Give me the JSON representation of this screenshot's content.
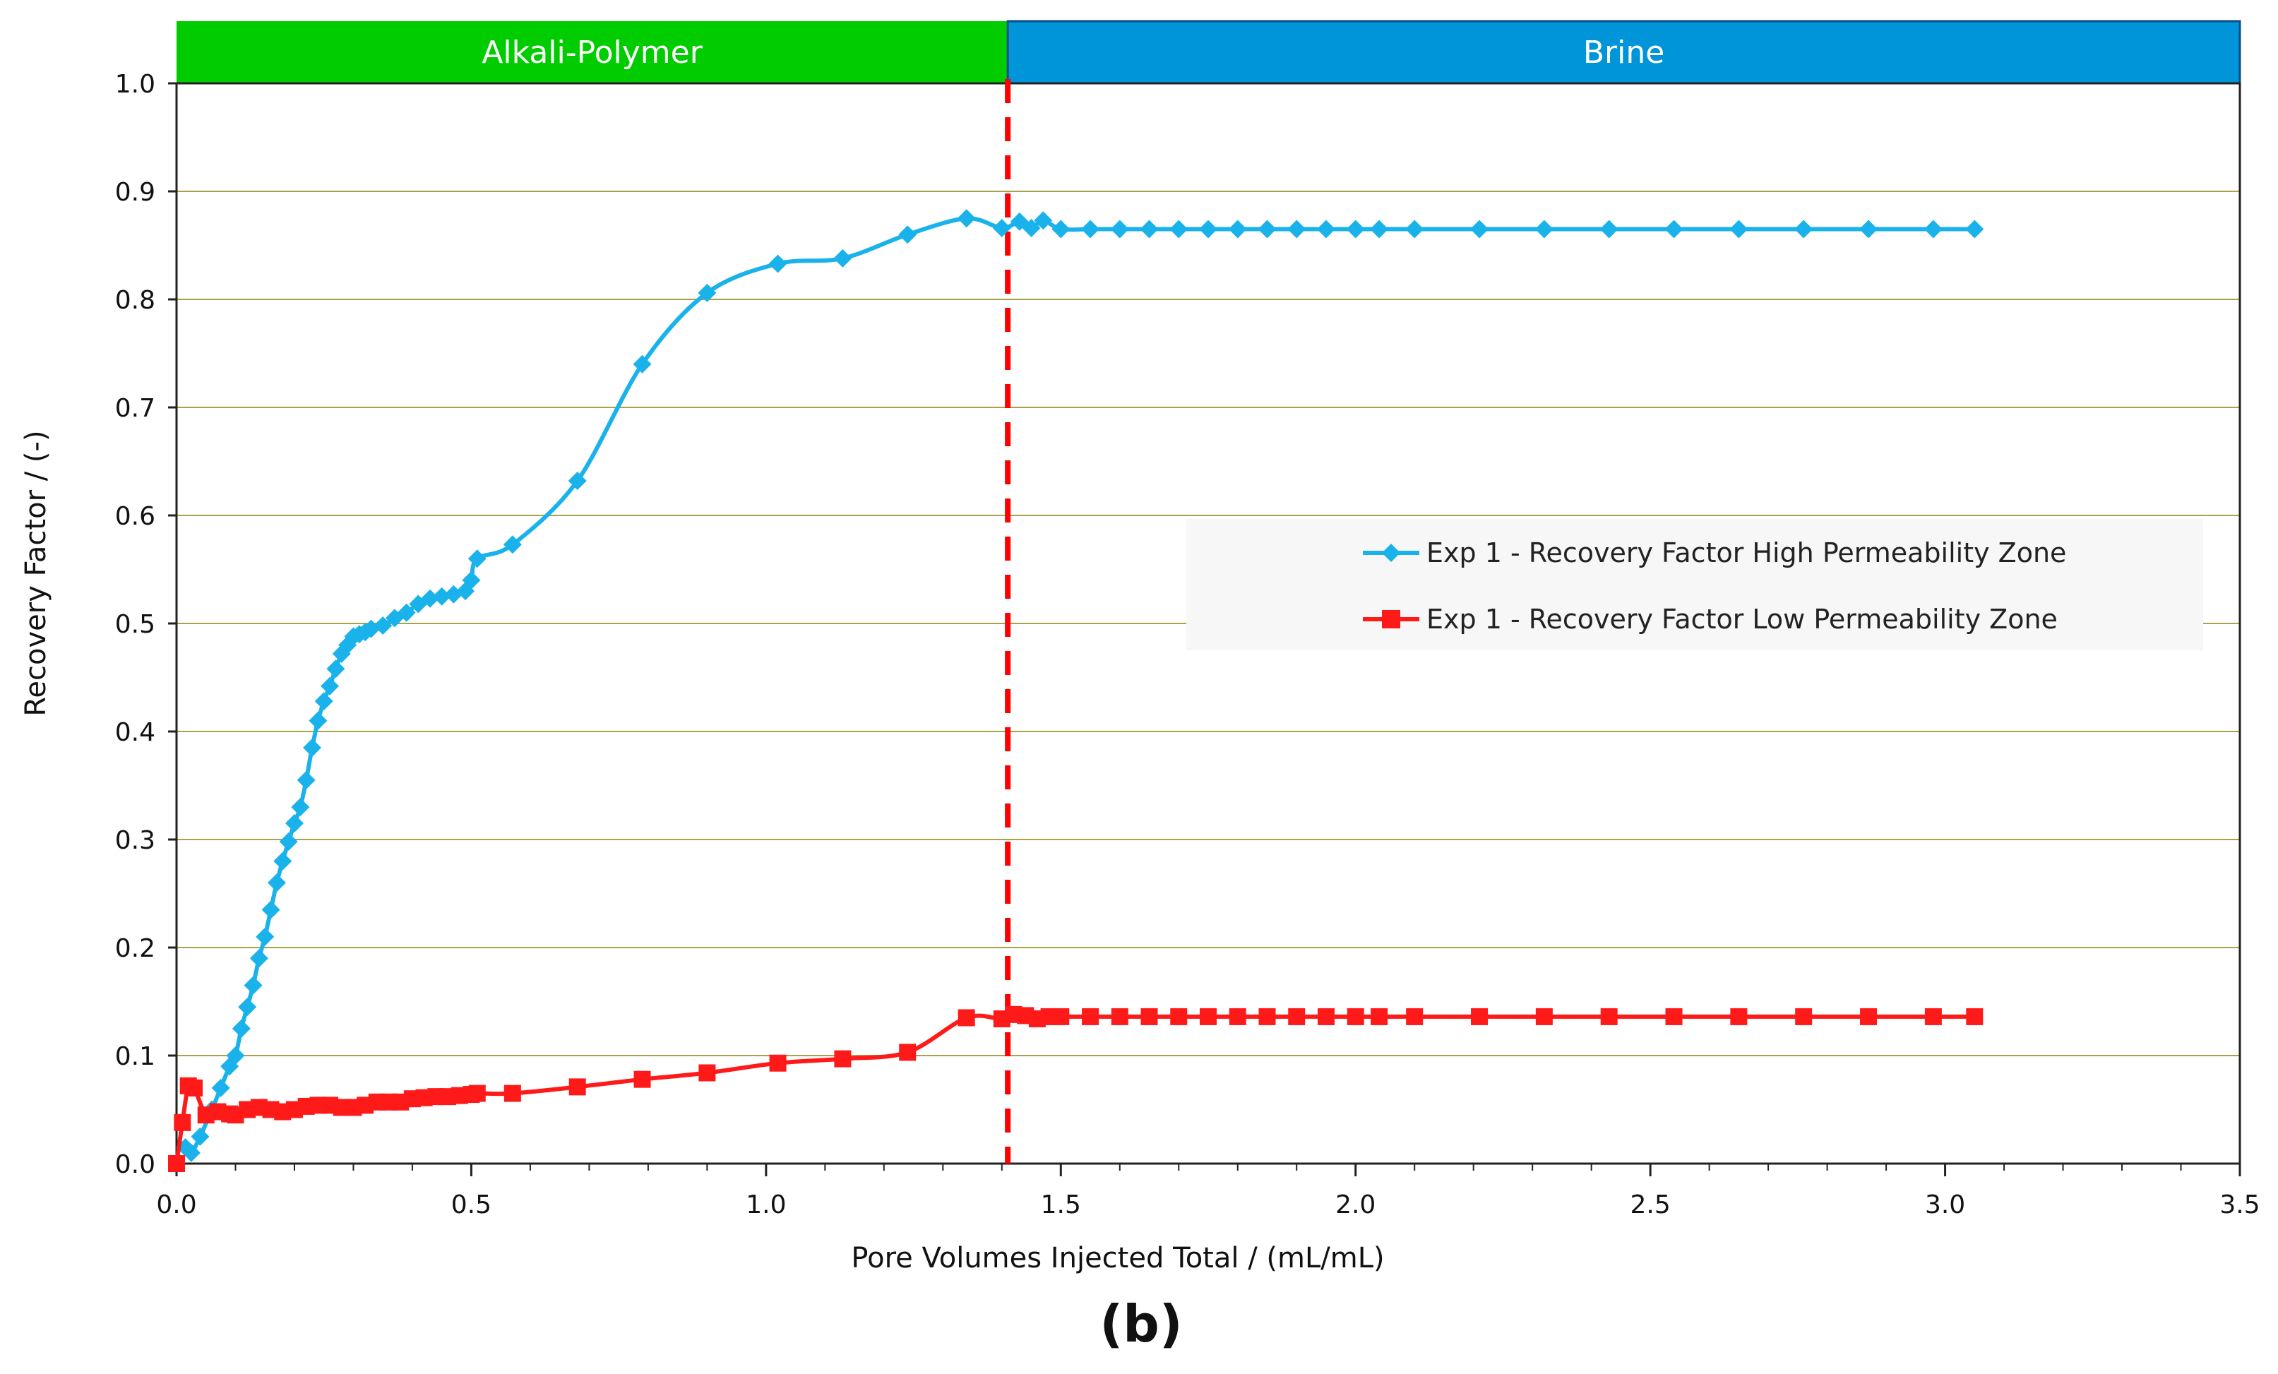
{
  "caption": "(b)",
  "chart_data": {
    "type": "line",
    "title": "",
    "xlabel": "Pore Volumes Injected Total / (mL/mL)",
    "ylabel": "Recovery Factor / (-)",
    "xlim": [
      0.0,
      3.5
    ],
    "ylim": [
      0.0,
      1.0
    ],
    "x_ticks": [
      "0.0",
      "0.5",
      "1.0",
      "1.5",
      "2.0",
      "2.5",
      "3.0",
      "3.5"
    ],
    "y_ticks": [
      "0.0",
      "0.1",
      "0.2",
      "0.3",
      "0.4",
      "0.5",
      "0.6",
      "0.7",
      "0.8",
      "0.9",
      "1.0"
    ],
    "grid": "horizontal",
    "phases": [
      {
        "label": "Alkali-Polymer",
        "x_start": 0.0,
        "x_end": 1.41,
        "color": "#00cc00"
      },
      {
        "label": "Brine",
        "x_start": 1.41,
        "x_end": 3.5,
        "color": "#0095d9"
      }
    ],
    "switch_line_x": 1.41,
    "switch_line_color": "#ff0000",
    "legend_position": "right",
    "series": [
      {
        "name": "Exp 1 - Recovery Factor High Permeability Zone",
        "color": "#1ab2ea",
        "marker": "diamond",
        "x": [
          0.015,
          0.025,
          0.04,
          0.06,
          0.075,
          0.09,
          0.1,
          0.11,
          0.12,
          0.13,
          0.14,
          0.15,
          0.16,
          0.17,
          0.18,
          0.19,
          0.2,
          0.21,
          0.22,
          0.23,
          0.24,
          0.25,
          0.26,
          0.27,
          0.28,
          0.29,
          0.3,
          0.31,
          0.32,
          0.33,
          0.35,
          0.37,
          0.39,
          0.41,
          0.43,
          0.45,
          0.47,
          0.49,
          0.5,
          0.51,
          0.57,
          0.68,
          0.79,
          0.9,
          1.02,
          1.13,
          1.24,
          1.34,
          1.4,
          1.43,
          1.45,
          1.47,
          1.5,
          1.55,
          1.6,
          1.65,
          1.7,
          1.75,
          1.8,
          1.85,
          1.9,
          1.95,
          2.0,
          2.04,
          2.1,
          2.21,
          2.32,
          2.43,
          2.54,
          2.65,
          2.76,
          2.87,
          2.98,
          3.05
        ],
        "values": [
          0.015,
          0.01,
          0.025,
          0.05,
          0.07,
          0.09,
          0.1,
          0.125,
          0.145,
          0.165,
          0.19,
          0.21,
          0.235,
          0.26,
          0.28,
          0.298,
          0.315,
          0.33,
          0.355,
          0.385,
          0.41,
          0.428,
          0.442,
          0.458,
          0.472,
          0.48,
          0.488,
          0.49,
          0.492,
          0.495,
          0.498,
          0.505,
          0.51,
          0.518,
          0.523,
          0.525,
          0.527,
          0.53,
          0.54,
          0.56,
          0.573,
          0.632,
          0.74,
          0.806,
          0.833,
          0.838,
          0.86,
          0.875,
          0.866,
          0.872,
          0.866,
          0.873,
          0.865,
          0.865,
          0.865,
          0.865,
          0.865,
          0.865,
          0.865,
          0.865,
          0.865,
          0.865,
          0.865,
          0.865,
          0.865,
          0.865,
          0.865,
          0.865,
          0.865,
          0.865,
          0.865,
          0.865,
          0.865,
          0.865
        ]
      },
      {
        "name": "Exp 1 - Recovery Factor Low Permeability Zone",
        "color": "#ff1a1a",
        "marker": "square",
        "x": [
          0.0,
          0.01,
          0.02,
          0.03,
          0.05,
          0.07,
          0.09,
          0.1,
          0.12,
          0.14,
          0.16,
          0.18,
          0.2,
          0.22,
          0.24,
          0.26,
          0.28,
          0.3,
          0.32,
          0.34,
          0.36,
          0.38,
          0.4,
          0.42,
          0.44,
          0.46,
          0.48,
          0.5,
          0.51,
          0.57,
          0.68,
          0.79,
          0.9,
          1.02,
          1.13,
          1.24,
          1.34,
          1.4,
          1.42,
          1.44,
          1.46,
          1.48,
          1.5,
          1.55,
          1.6,
          1.65,
          1.7,
          1.75,
          1.8,
          1.85,
          1.9,
          1.95,
          2.0,
          2.04,
          2.1,
          2.21,
          2.32,
          2.43,
          2.54,
          2.65,
          2.76,
          2.87,
          2.98,
          3.05
        ],
        "values": [
          0.0,
          0.038,
          0.072,
          0.07,
          0.045,
          0.048,
          0.046,
          0.045,
          0.05,
          0.052,
          0.05,
          0.048,
          0.05,
          0.053,
          0.054,
          0.054,
          0.052,
          0.052,
          0.054,
          0.057,
          0.057,
          0.057,
          0.06,
          0.061,
          0.062,
          0.062,
          0.063,
          0.064,
          0.065,
          0.065,
          0.071,
          0.078,
          0.084,
          0.093,
          0.097,
          0.103,
          0.135,
          0.134,
          0.138,
          0.137,
          0.134,
          0.136,
          0.136,
          0.136,
          0.136,
          0.136,
          0.136,
          0.136,
          0.136,
          0.136,
          0.136,
          0.136,
          0.136,
          0.136,
          0.136,
          0.136,
          0.136,
          0.136,
          0.136,
          0.136,
          0.136,
          0.136,
          0.136,
          0.136
        ]
      }
    ]
  }
}
